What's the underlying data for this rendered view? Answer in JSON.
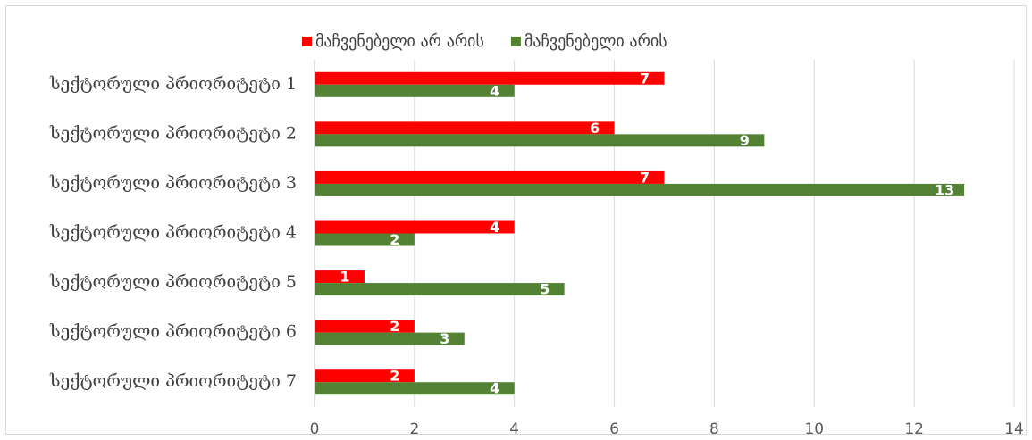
{
  "chart_data": {
    "type": "bar",
    "orientation": "horizontal",
    "categories": [
      "სექტორული პრიორიტეტი 1",
      "სექტორული პრიორიტეტი 2",
      "სექტორული პრიორიტეტი 3",
      "სექტორული პრიორიტეტი 4",
      "სექტორული პრიორიტეტი 5",
      "სექტორული პრიორიტეტი 6",
      "სექტორული პრიორიტეტი 7"
    ],
    "series": [
      {
        "name": "მაჩვენებელი არ არის",
        "color": "#ff0000",
        "values": [
          7,
          6,
          7,
          4,
          1,
          2,
          2
        ]
      },
      {
        "name": "მაჩვენებელი არის",
        "color": "#548235",
        "values": [
          4,
          9,
          13,
          2,
          5,
          3,
          4
        ]
      }
    ],
    "xlim": [
      0,
      14
    ],
    "xticks": [
      0,
      2,
      4,
      6,
      8,
      10,
      12,
      14
    ],
    "grid": true,
    "legend": "top"
  }
}
